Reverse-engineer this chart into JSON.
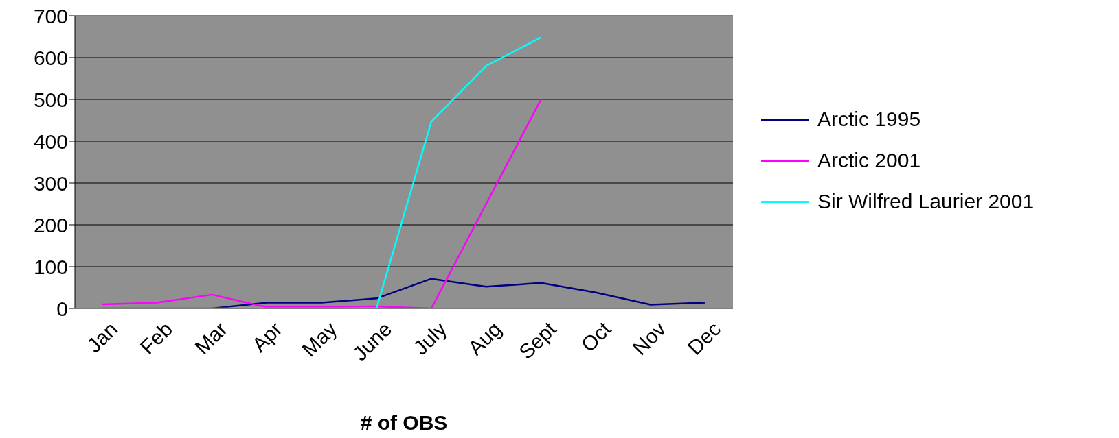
{
  "chart_data": {
    "type": "line",
    "xlabel": "# of OBS",
    "categories": [
      "Jan",
      "Feb",
      "Mar",
      "Apr",
      "May",
      "June",
      "July",
      "Aug",
      "Sept",
      "Oct",
      "Nov",
      "Dec"
    ],
    "series": [
      {
        "name": "Arctic 1995",
        "color": "#000080",
        "values": [
          0,
          0,
          0,
          14,
          14,
          24,
          71,
          52,
          61,
          38,
          9,
          14
        ]
      },
      {
        "name": "Arctic 2001",
        "color": "#ff00ff",
        "values": [
          10,
          14,
          33,
          3,
          3,
          5,
          0,
          250,
          500,
          null,
          null,
          null
        ]
      },
      {
        "name": "Sir Wilfred Laurier 2001",
        "color": "#00ffff",
        "values": [
          0,
          0,
          0,
          0,
          0,
          0,
          447,
          580,
          648,
          null,
          null,
          null
        ]
      }
    ],
    "ylim": [
      0,
      700
    ],
    "yticks": [
      0,
      100,
      200,
      300,
      400,
      500,
      600,
      700
    ],
    "grid": "y",
    "legend": "right",
    "marker": "none",
    "line_style": "solid"
  }
}
